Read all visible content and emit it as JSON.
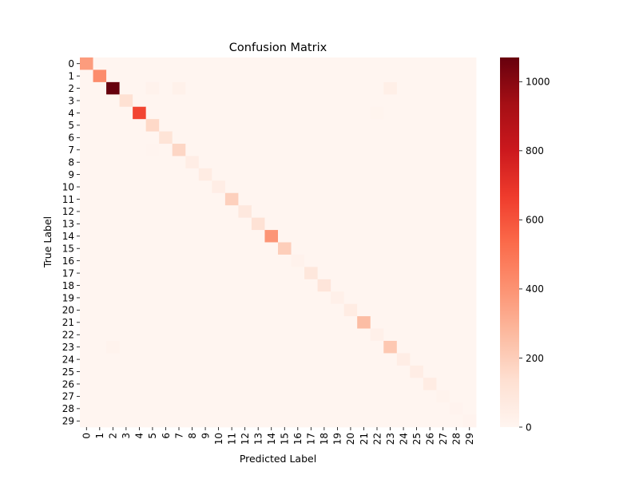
{
  "chart_data": {
    "type": "heatmap",
    "title": "Confusion Matrix",
    "xlabel": "Predicted Label",
    "ylabel": "True Label",
    "labels": [
      "0",
      "1",
      "2",
      "3",
      "4",
      "5",
      "6",
      "7",
      "8",
      "9",
      "10",
      "11",
      "12",
      "13",
      "14",
      "15",
      "16",
      "17",
      "18",
      "19",
      "20",
      "21",
      "22",
      "23",
      "24",
      "25",
      "26",
      "27",
      "28",
      "29"
    ],
    "diagonal": [
      370,
      420,
      1070,
      130,
      640,
      160,
      110,
      170,
      50,
      60,
      50,
      190,
      80,
      120,
      390,
      200,
      20,
      90,
      100,
      30,
      60,
      260,
      30,
      220,
      50,
      50,
      60,
      15,
      10,
      10
    ],
    "off_diagonal": [
      {
        "row": 2,
        "col": 5,
        "value": 20
      },
      {
        "row": 2,
        "col": 7,
        "value": 25
      },
      {
        "row": 2,
        "col": 23,
        "value": 40
      },
      {
        "row": 4,
        "col": 22,
        "value": 8
      },
      {
        "row": 7,
        "col": 5,
        "value": 6
      },
      {
        "row": 23,
        "col": 2,
        "value": 12
      }
    ],
    "colorbar": {
      "min": 0,
      "max": 1070,
      "ticks": [
        0,
        200,
        400,
        600,
        800,
        1000
      ],
      "colormap": "Reds"
    },
    "colors": [
      "#fff5f0",
      "#fee0d2",
      "#fcbba1",
      "#fc9272",
      "#fb6a4a",
      "#ef3b2c",
      "#cb181d",
      "#a50f15",
      "#67000d"
    ]
  }
}
